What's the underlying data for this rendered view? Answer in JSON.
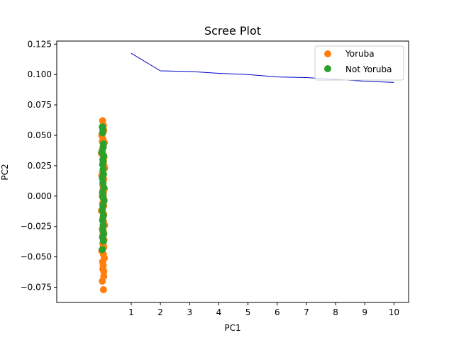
{
  "chart_data": {
    "type": "scatter",
    "title": "Scree Plot",
    "xlabel": "PC1",
    "ylabel": "PC2",
    "xlim": [
      -1.55,
      10.5
    ],
    "ylim": [
      -0.0875,
      0.1275
    ],
    "x_ticks": [
      "1",
      "2",
      "3",
      "4",
      "5",
      "6",
      "7",
      "8",
      "9",
      "10"
    ],
    "y_ticks": [
      "−0.075",
      "−0.050",
      "−0.025",
      "0.000",
      "0.025",
      "0.050",
      "0.075",
      "0.100",
      "0.125"
    ],
    "grid": false,
    "legend_position": "top-right",
    "legend": [
      {
        "label": "Yoruba",
        "color": "#ff7f0e"
      },
      {
        "label": "Not Yoruba",
        "color": "#2ca02c"
      }
    ],
    "scree_line": {
      "color": "#0000cc",
      "x": [
        1,
        2,
        3,
        4,
        5,
        6,
        7,
        8,
        9,
        10
      ],
      "y": [
        0.1175,
        0.103,
        0.1025,
        0.101,
        0.1,
        0.098,
        0.0975,
        0.096,
        0.0945,
        0.0935
      ]
    },
    "series": [
      {
        "name": "Yoruba",
        "color": "#ff7f0e",
        "x": [
          0.02,
          0.05,
          0.06,
          -0.01,
          0.03,
          0.08,
          0.04,
          0.01,
          -0.02,
          0.07,
          0.05,
          0.03,
          0.09,
          0.02,
          -0.01,
          0.06,
          0.04,
          0.03,
          0.08,
          0.05,
          0.01,
          0.07,
          0.02,
          0.04,
          -0.02,
          0.06,
          0.03,
          0.05,
          0.09,
          0.01,
          0.04,
          0.02,
          0.07,
          0.03,
          0.06,
          -0.01,
          0.05,
          0.08,
          0.02,
          0.04,
          0.03,
          0.06,
          0.01,
          0.05,
          0.02,
          0.07,
          0.04,
          0.03,
          0.06,
          0.02,
          0.05,
          0.01,
          0.04,
          0.03,
          0.06,
          0.02
        ],
        "y": [
          0.062,
          0.058,
          0.054,
          0.05,
          0.047,
          0.044,
          0.041,
          0.038,
          0.035,
          0.032,
          0.029,
          0.026,
          0.023,
          0.02,
          0.017,
          0.014,
          0.012,
          0.009,
          0.006,
          0.003,
          0.0,
          -0.003,
          -0.006,
          -0.009,
          -0.012,
          -0.015,
          -0.018,
          -0.021,
          -0.024,
          -0.027,
          -0.03,
          -0.033,
          -0.036,
          -0.039,
          -0.042,
          -0.045,
          -0.048,
          -0.051,
          -0.054,
          -0.057,
          -0.06,
          -0.066,
          -0.07,
          -0.077,
          0.036,
          0.025,
          0.015,
          0.005,
          -0.008,
          -0.02,
          -0.03,
          0.045,
          -0.04,
          0.052,
          -0.062,
          0.002
        ]
      },
      {
        "name": "Not Yoruba",
        "color": "#2ca02c",
        "x": [
          0.01,
          0.03,
          0.02,
          0.05,
          0.04,
          -0.01,
          0.06,
          0.03,
          0.02,
          0.04,
          0.05,
          0.01,
          0.03,
          0.06,
          0.02,
          0.04,
          0.07,
          0.03,
          0.01,
          0.05,
          0.02,
          0.04,
          0.03,
          0.06,
          0.02,
          0.05,
          0.01,
          0.04,
          0.03
        ],
        "y": [
          0.057,
          0.055,
          0.052,
          0.043,
          0.04,
          0.036,
          0.033,
          0.03,
          0.026,
          0.022,
          0.018,
          0.015,
          0.011,
          0.007,
          0.003,
          0.0,
          -0.004,
          -0.008,
          -0.012,
          -0.016,
          -0.02,
          -0.024,
          -0.028,
          -0.031,
          -0.034,
          -0.037,
          -0.044,
          0.028,
          -0.001
        ]
      }
    ]
  }
}
